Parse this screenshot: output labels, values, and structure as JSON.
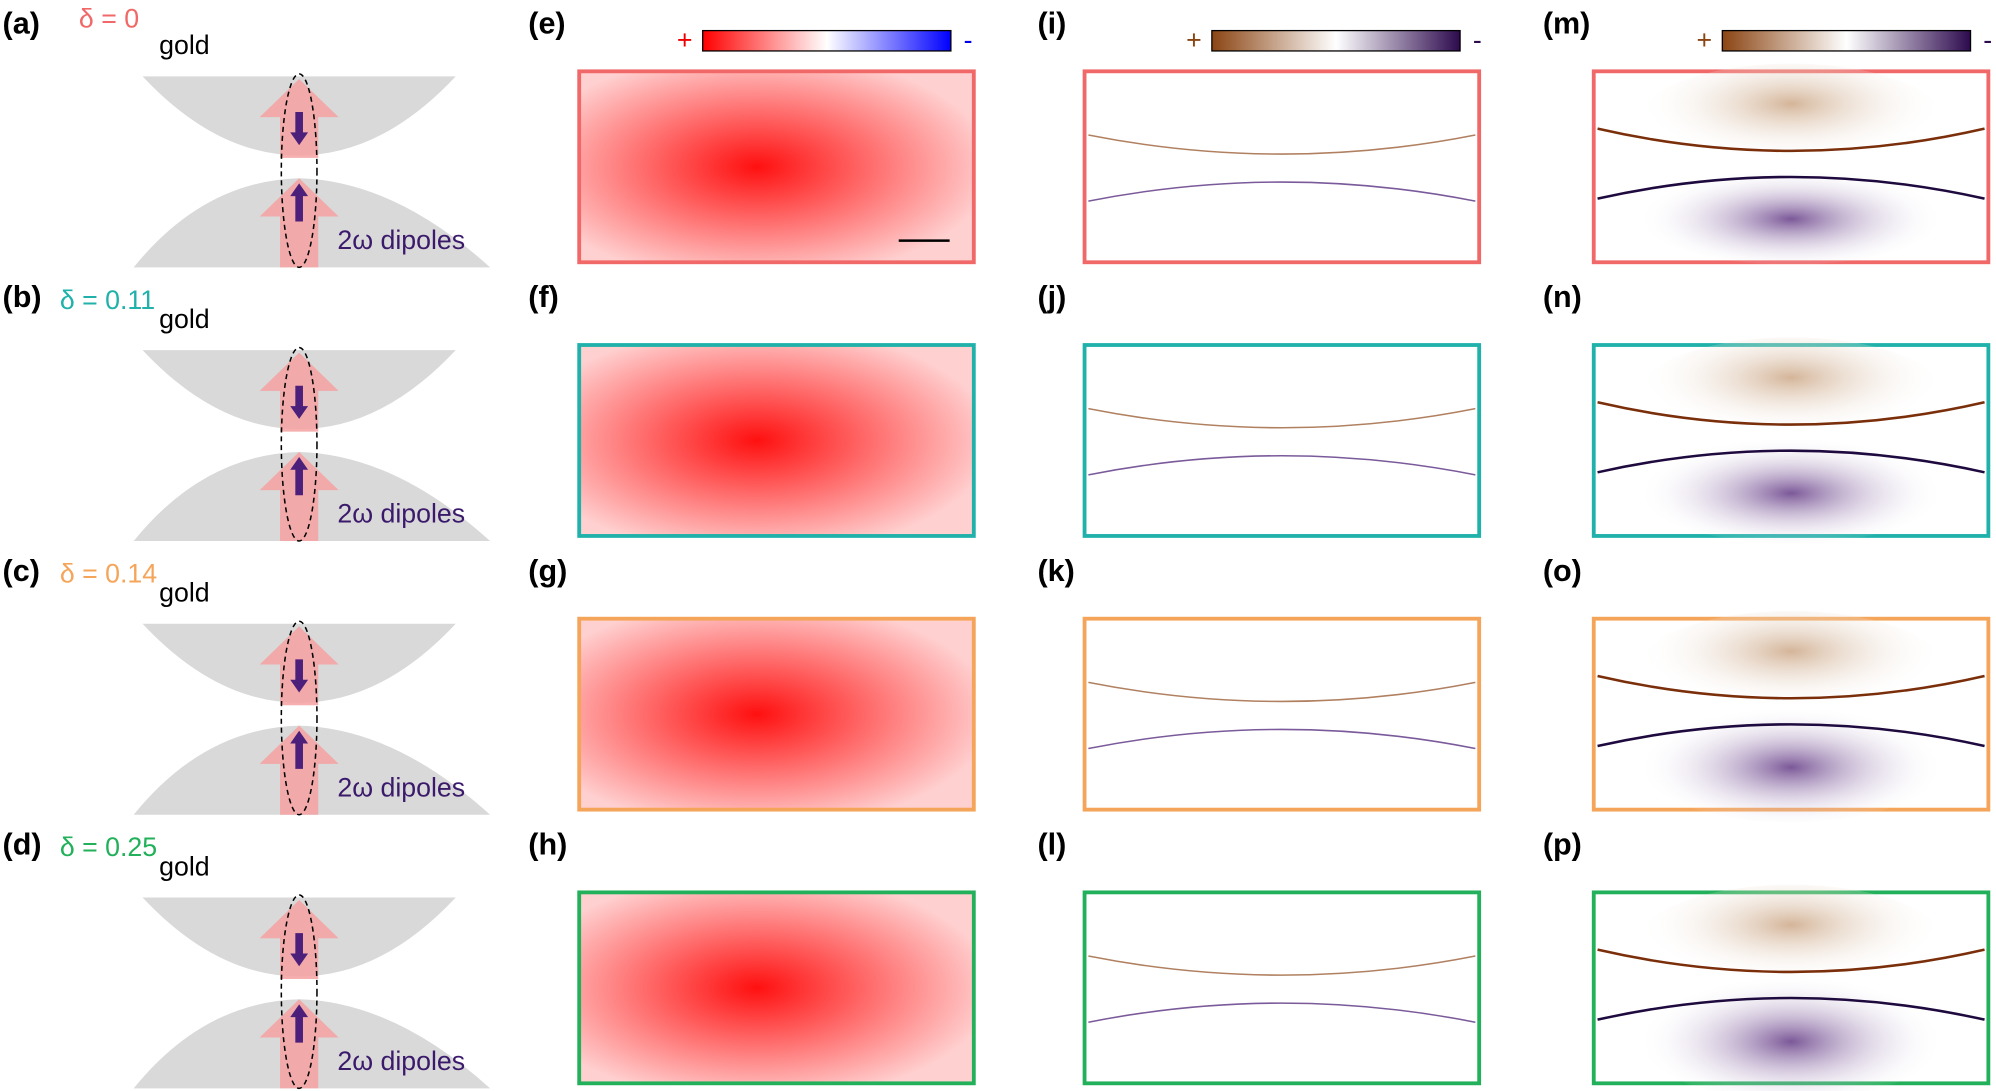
{
  "rows": [
    {
      "label": "(a)",
      "delta": "δ = 0",
      "color": "#f06868",
      "gold": "gold",
      "dipoles": "2ω dipoles",
      "e": "(e)",
      "i": "(i)",
      "m": "(m)"
    },
    {
      "label": "(b)",
      "delta": "δ = 0.11",
      "color": "#20b2aa",
      "gold": "gold",
      "dipoles": "2ω dipoles",
      "e": "(f)",
      "i": "(j)",
      "m": "(n)"
    },
    {
      "label": "(c)",
      "delta": "δ = 0.14",
      "color": "#f5a55a",
      "gold": "gold",
      "dipoles": "2ω dipoles",
      "e": "(g)",
      "i": "(k)",
      "m": "(o)"
    },
    {
      "label": "(d)",
      "delta": "δ = 0.25",
      "color": "#22b05a",
      "gold": "gold",
      "dipoles": "2ω dipoles",
      "e": "(h)",
      "i": "(l)",
      "m": "(p)"
    }
  ],
  "colorbars": [
    {
      "plus": "+",
      "minus": "-"
    },
    {
      "plus": "+",
      "minus": "-"
    },
    {
      "plus": "+",
      "minus": "-"
    }
  ]
}
